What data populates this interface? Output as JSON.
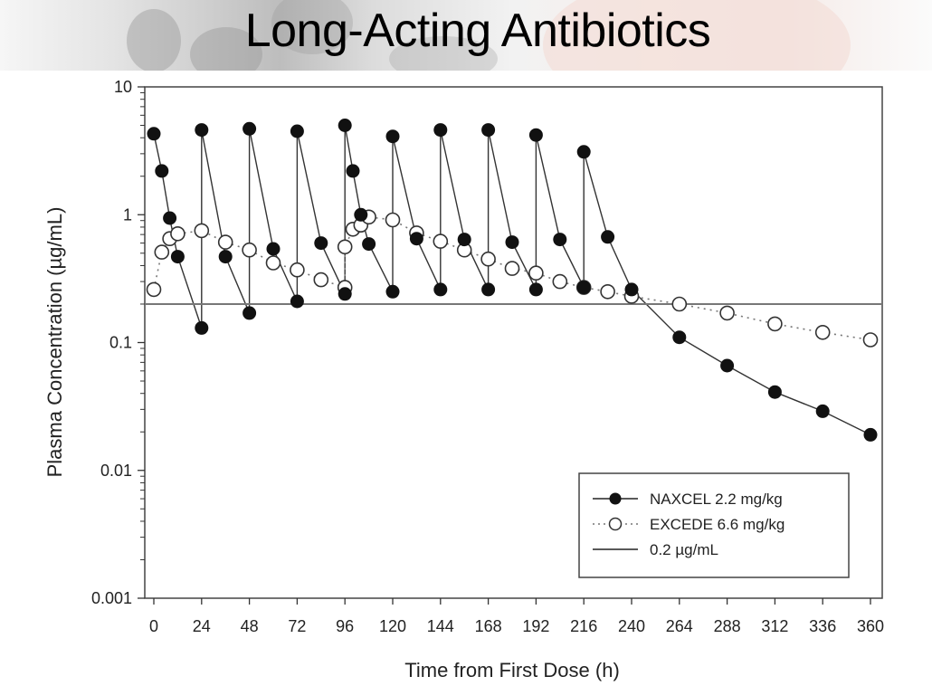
{
  "slide": {
    "title": "Long-Acting Antibiotics"
  },
  "colors": {
    "series_line": "#333333",
    "filled_marker": "#111111",
    "open_marker_stroke": "#333333",
    "reference_line": "#777777",
    "frame": "#444444"
  },
  "chart_data": {
    "type": "line",
    "title": "Long-Acting Antibiotics",
    "xlabel": "Time from First Dose (h)",
    "ylabel": "Plasma Concentration (µg/mL)",
    "xlim": [
      0,
      360
    ],
    "ylim": [
      0.001,
      10
    ],
    "yscale": "log",
    "grid": false,
    "legend_position": "lower right",
    "x_ticks": [
      0,
      24,
      48,
      72,
      96,
      120,
      144,
      168,
      192,
      216,
      240,
      264,
      288,
      312,
      336,
      360
    ],
    "y_ticks": [
      {
        "value": 10,
        "label": "10"
      },
      {
        "value": 1,
        "label": "1"
      },
      {
        "value": 0.1,
        "label": "0.1"
      },
      {
        "value": 0.01,
        "label": "0.01"
      },
      {
        "value": 0.001,
        "label": "0.001"
      }
    ],
    "series": [
      {
        "name": "NAXCEL 2.2 mg/kg",
        "marker": "filled-circle",
        "line": "solid",
        "points": [
          [
            0,
            4.3
          ],
          [
            4,
            2.2
          ],
          [
            8,
            0.94
          ],
          [
            12,
            0.47
          ],
          [
            24,
            0.13
          ],
          [
            24,
            4.6
          ],
          [
            36,
            0.47
          ],
          [
            48,
            0.17
          ],
          [
            48,
            4.7
          ],
          [
            60,
            0.54
          ],
          [
            72,
            0.21
          ],
          [
            72,
            4.5
          ],
          [
            84,
            0.6
          ],
          [
            96,
            0.24
          ],
          [
            96,
            5.0
          ],
          [
            100,
            2.2
          ],
          [
            104,
            1.0
          ],
          [
            108,
            0.59
          ],
          [
            120,
            0.25
          ],
          [
            120,
            4.1
          ],
          [
            132,
            0.65
          ],
          [
            144,
            0.26
          ],
          [
            144,
            4.6
          ],
          [
            156,
            0.64
          ],
          [
            168,
            0.26
          ],
          [
            168,
            4.6
          ],
          [
            180,
            0.61
          ],
          [
            192,
            0.26
          ],
          [
            192,
            4.2
          ],
          [
            204,
            0.64
          ],
          [
            216,
            0.27
          ],
          [
            216,
            3.1
          ],
          [
            228,
            0.67
          ],
          [
            240,
            0.26
          ],
          [
            264,
            0.11
          ],
          [
            288,
            0.066
          ],
          [
            312,
            0.041
          ],
          [
            336,
            0.029
          ],
          [
            360,
            0.019
          ]
        ]
      },
      {
        "name": "EXCEDE 6.6 mg/kg",
        "marker": "open-circle",
        "line": "dotted",
        "points": [
          [
            0,
            0.26
          ],
          [
            4,
            0.51
          ],
          [
            8,
            0.65
          ],
          [
            12,
            0.71
          ],
          [
            24,
            0.75
          ],
          [
            36,
            0.61
          ],
          [
            48,
            0.53
          ],
          [
            60,
            0.42
          ],
          [
            72,
            0.37
          ],
          [
            84,
            0.31
          ],
          [
            96,
            0.27
          ],
          [
            96,
            0.56
          ],
          [
            100,
            0.77
          ],
          [
            104,
            0.83
          ],
          [
            108,
            0.96
          ],
          [
            120,
            0.91
          ],
          [
            132,
            0.72
          ],
          [
            144,
            0.62
          ],
          [
            156,
            0.53
          ],
          [
            168,
            0.45
          ],
          [
            180,
            0.38
          ],
          [
            192,
            0.35
          ],
          [
            204,
            0.3
          ],
          [
            216,
            0.27
          ],
          [
            228,
            0.25
          ],
          [
            240,
            0.23
          ],
          [
            264,
            0.2
          ],
          [
            288,
            0.17
          ],
          [
            312,
            0.14
          ],
          [
            336,
            0.12
          ],
          [
            360,
            0.105
          ]
        ]
      },
      {
        "name": "0.2 µg/mL",
        "marker": "none",
        "line": "solid-gray",
        "points": [
          [
            0,
            0.2
          ],
          [
            360,
            0.2
          ]
        ]
      }
    ],
    "legend": [
      {
        "label": "NAXCEL 2.2 mg/kg",
        "symbol": "filled-circle-solid"
      },
      {
        "label": "EXCEDE 6.6 mg/kg",
        "symbol": "open-circle-dotted"
      },
      {
        "label": "0.2 µg/mL",
        "symbol": "solid-line"
      }
    ]
  }
}
